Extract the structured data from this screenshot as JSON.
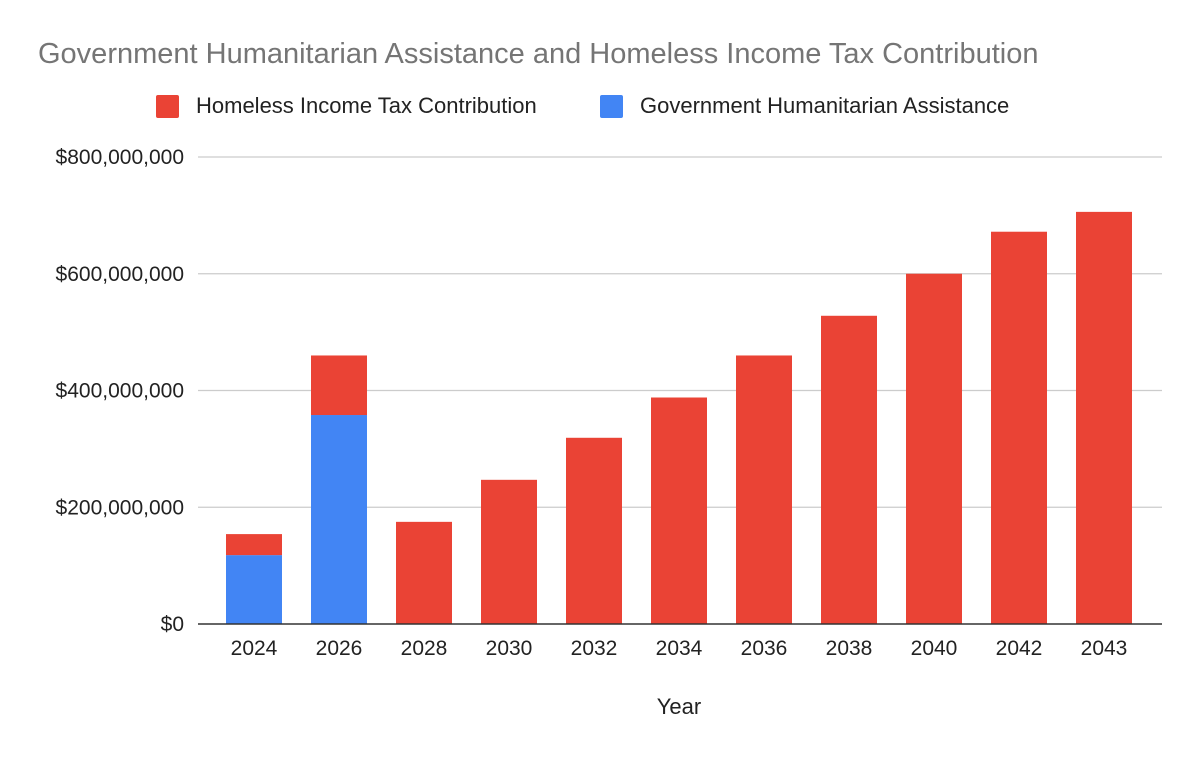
{
  "chart_data": {
    "type": "bar",
    "stacked": true,
    "title": "Government Humanitarian Assistance and Homeless Income Tax Contribution",
    "xlabel": "Year",
    "ylabel": "",
    "categories": [
      "2024",
      "2026",
      "2028",
      "2030",
      "2032",
      "2034",
      "2036",
      "2038",
      "2040",
      "2042",
      "2043"
    ],
    "series": [
      {
        "name": "Government Humanitarian Assistance",
        "color": "#4285f4",
        "values": [
          118000000,
          358000000,
          0,
          0,
          0,
          0,
          0,
          0,
          0,
          0,
          0
        ]
      },
      {
        "name": "Homeless Income Tax Contribution",
        "color": "#ea4335",
        "values": [
          36000000,
          102000000,
          175000000,
          247000000,
          319000000,
          388000000,
          460000000,
          528000000,
          600000000,
          672000000,
          706000000
        ]
      }
    ],
    "legend": {
      "position": "top",
      "order": [
        "Homeless Income Tax Contribution",
        "Government Humanitarian Assistance"
      ]
    },
    "ylim": [
      0,
      800000000
    ],
    "yticks": [
      0,
      200000000,
      400000000,
      600000000,
      800000000
    ],
    "ytick_labels": [
      "$0",
      "$200,000,000",
      "$400,000,000",
      "$600,000,000",
      "$800,000,000"
    ],
    "grid": true
  }
}
